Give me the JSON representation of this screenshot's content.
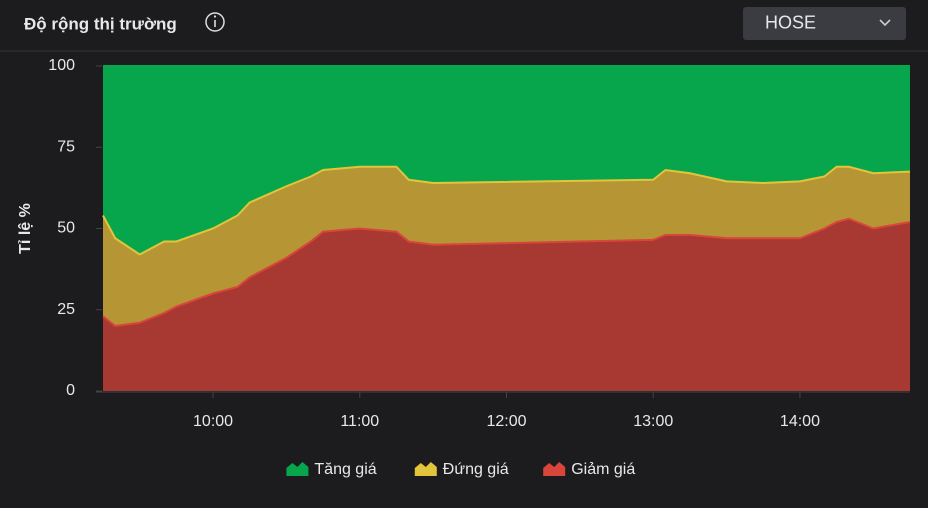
{
  "header": {
    "title": "Độ rộng thị trường",
    "selector": "HOSE"
  },
  "chart_data": {
    "type": "stacked_area",
    "y_label": "Tỉ lệ %",
    "x": [
      555,
      560,
      570,
      580,
      585,
      600,
      610,
      615,
      630,
      640,
      645,
      660,
      675,
      680,
      690,
      780,
      785,
      795,
      810,
      825,
      840,
      850,
      855,
      860,
      870,
      885
    ],
    "xlim": [
      555,
      885
    ],
    "xticks": [
      {
        "value": 600,
        "label": "10:00"
      },
      {
        "value": 660,
        "label": "11:00"
      },
      {
        "value": 720,
        "label": "12:00"
      },
      {
        "value": 780,
        "label": "13:00"
      },
      {
        "value": 840,
        "label": "14:00"
      }
    ],
    "ylim": [
      0,
      100
    ],
    "yticks": [
      0,
      25,
      50,
      75,
      100
    ],
    "series": [
      {
        "name": "Tăng giá",
        "color": "#08a64c",
        "values": [
          46,
          53,
          58,
          54,
          54,
          50,
          46,
          42,
          37,
          34,
          32,
          31,
          31,
          35,
          36,
          35,
          32,
          33,
          35.5,
          36,
          35.5,
          34,
          31,
          31,
          33,
          32.5
        ]
      },
      {
        "name": "Đứng giá",
        "color": "#b69535",
        "values": [
          31,
          27,
          21,
          22,
          20,
          20,
          22,
          23,
          22,
          20,
          19,
          19,
          20,
          19,
          19,
          18.5,
          20,
          19,
          17.5,
          17,
          17.5,
          16,
          17,
          16,
          17,
          15.5
        ]
      },
      {
        "name": "Giảm giá",
        "color": "#a83832",
        "values": [
          23,
          20,
          21,
          24,
          26,
          30,
          32,
          35,
          41,
          46,
          49,
          50,
          49,
          46,
          45,
          46.5,
          48,
          48,
          47,
          47,
          47,
          50,
          52,
          53,
          50,
          52
        ]
      }
    ],
    "stroke_colors": [
      "#08a64c",
      "#e2c53a",
      "#d8453a"
    ]
  }
}
